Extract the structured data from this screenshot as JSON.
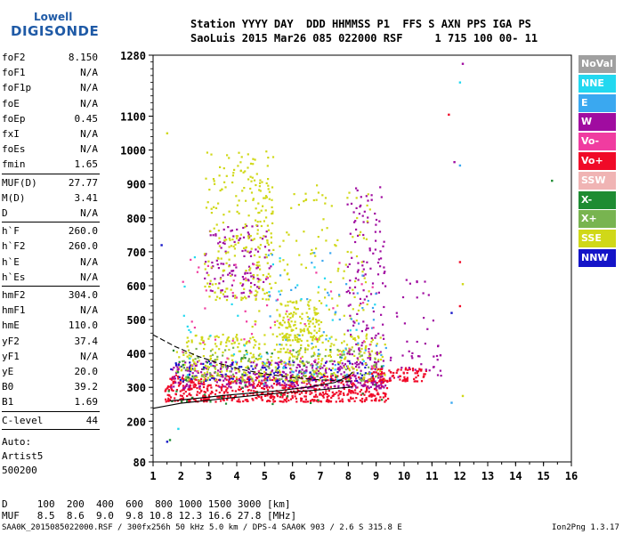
{
  "logo": {
    "line1": "Lowell",
    "line2": "DIGISONDE"
  },
  "header": {
    "line1": "Station YYYY DAY  DDD HHMMSS P1  FFS S AXN PPS IGA PS",
    "line2": "SaoLuis 2015 Mar26 085 022000 RSF     1 715 100 00- 11"
  },
  "params": {
    "group1": [
      {
        "label": "foF2",
        "value": "8.150"
      },
      {
        "label": "foF1",
        "value": "N/A"
      },
      {
        "label": "foF1p",
        "value": "N/A"
      },
      {
        "label": "foE",
        "value": "N/A"
      },
      {
        "label": "foEp",
        "value": "0.45"
      },
      {
        "label": "fxI",
        "value": "N/A"
      },
      {
        "label": "foEs",
        "value": "N/A"
      },
      {
        "label": "fmin",
        "value": "1.65"
      }
    ],
    "group2": [
      {
        "label": "MUF(D)",
        "value": "27.77"
      },
      {
        "label": "M(D)",
        "value": "3.41"
      },
      {
        "label": "D",
        "value": "N/A"
      }
    ],
    "group3": [
      {
        "label": "h`F",
        "value": "260.0"
      },
      {
        "label": "h`F2",
        "value": "260.0"
      },
      {
        "label": "h`E",
        "value": "N/A"
      },
      {
        "label": "h`Es",
        "value": "N/A"
      }
    ],
    "group4": [
      {
        "label": "hmF2",
        "value": "304.0"
      },
      {
        "label": "hmF1",
        "value": "N/A"
      },
      {
        "label": "hmE",
        "value": "110.0"
      },
      {
        "label": "yF2",
        "value": "37.4"
      },
      {
        "label": "yF1",
        "value": "N/A"
      },
      {
        "label": "yE",
        "value": "20.0"
      },
      {
        "label": "B0",
        "value": "39.2"
      },
      {
        "label": "B1",
        "value": "1.69"
      }
    ],
    "group5": [
      {
        "label": "C-level",
        "value": "44"
      }
    ]
  },
  "auto": [
    "Auto:",
    "Artist5",
    "500200"
  ],
  "legend": [
    {
      "label": "NoVal",
      "color": "#a0a0a0"
    },
    {
      "label": "NNE",
      "color": "#22d8f0"
    },
    {
      "label": "E",
      "color": "#3aa8f0"
    },
    {
      "label": "W",
      "color": "#a00ca0"
    },
    {
      "label": "Vo-",
      "color": "#f03ca0"
    },
    {
      "label": "Vo+",
      "color": "#f00a28"
    },
    {
      "label": "SSW",
      "color": "#f0b4b4"
    },
    {
      "label": "X-",
      "color": "#1e8c32"
    },
    {
      "label": "X+",
      "color": "#78b450"
    },
    {
      "label": "SSE",
      "color": "#d0d818"
    },
    {
      "label": "NNW",
      "color": "#1414c8"
    }
  ],
  "footer": {
    "dline": "D     100  200  400  600  800 1000 1500 3000 [km]",
    "mufline": "MUF   8.5  8.6  9.0  9.8 10.8 12.3 16.6 27.8 [MHz]",
    "fileline": "SAA0K_2015085022000.RSF / 300fx256h 50 kHz 5.0 km / DPS-4 SAA0K 903 / 2.6 S 315.8 E",
    "version": "Ion2Png 1.3.17"
  },
  "chart_data": {
    "type": "scatter",
    "title": "",
    "xlabel": "",
    "ylabel": "",
    "xlim": [
      1,
      16
    ],
    "ylim": [
      80,
      1280
    ],
    "x_ticks": [
      1,
      2,
      3,
      4,
      5,
      6,
      7,
      8,
      9,
      10,
      11,
      12,
      13,
      14,
      15,
      16
    ],
    "y_ticks": [
      80,
      200,
      300,
      400,
      500,
      600,
      700,
      800,
      900,
      1000,
      1100,
      1280
    ],
    "curves": [
      {
        "name": "",
        "color": "#000000",
        "points": [
          [
            1.0,
            238
          ],
          [
            2.0,
            253
          ],
          [
            3.0,
            262
          ],
          [
            4.0,
            271
          ],
          [
            5.0,
            279
          ],
          [
            6.0,
            286
          ],
          [
            7.0,
            293
          ],
          [
            8.0,
            300
          ],
          [
            8.15,
            302
          ]
        ]
      },
      {
        "name": "",
        "color": "#000000",
        "points": [
          [
            1.6,
            260
          ],
          [
            2.5,
            267
          ],
          [
            3.5,
            276
          ],
          [
            4.5,
            283
          ],
          [
            5.5,
            290
          ],
          [
            6.5,
            300
          ],
          [
            7.5,
            314
          ],
          [
            8.0,
            332
          ],
          [
            8.15,
            345
          ]
        ]
      },
      {
        "name": "",
        "color": "#000000",
        "dashed": true,
        "points": [
          [
            1.0,
            455
          ],
          [
            1.8,
            420
          ],
          [
            2.6,
            392
          ],
          [
            3.4,
            370
          ],
          [
            4.2,
            352
          ],
          [
            5.0,
            340
          ],
          [
            6.0,
            329
          ],
          [
            7.0,
            322
          ],
          [
            8.15,
            318
          ]
        ]
      }
    ],
    "clusters": [
      {
        "color": "#a00ca0",
        "x": [
          2.8,
          5.2
        ],
        "y": [
          570,
          780
        ],
        "n": 120
      },
      {
        "color": "#d0d818",
        "x": [
          2.8,
          5.3
        ],
        "y": [
          560,
          1000
        ],
        "n": 230
      },
      {
        "color": "#f00a28",
        "x": [
          1.4,
          9.4
        ],
        "y": [
          260,
          340
        ],
        "n": 700
      },
      {
        "color": "#a00ca0",
        "x": [
          1.6,
          9.3
        ],
        "y": [
          300,
          380
        ],
        "n": 380
      },
      {
        "color": "#1414c8",
        "x": [
          1.6,
          9.0
        ],
        "y": [
          320,
          380
        ],
        "n": 110
      },
      {
        "color": "#d0d818",
        "x": [
          1.8,
          9.3
        ],
        "y": [
          320,
          460
        ],
        "n": 380
      },
      {
        "color": "#78b450",
        "x": [
          2.0,
          9.0
        ],
        "y": [
          320,
          420
        ],
        "n": 120
      },
      {
        "color": "#d0d818",
        "x": [
          5.5,
          7.0
        ],
        "y": [
          440,
          560
        ],
        "n": 130
      },
      {
        "color": "#a00ca0",
        "x": [
          7.9,
          9.3
        ],
        "y": [
          380,
          900
        ],
        "n": 130
      },
      {
        "color": "#d0d818",
        "x": [
          4.5,
          8.8
        ],
        "y": [
          380,
          900
        ],
        "n": 170
      },
      {
        "color": "#3aa8f0",
        "x": [
          5.0,
          9.4
        ],
        "y": [
          340,
          700
        ],
        "n": 60
      },
      {
        "color": "#22d8f0",
        "x": [
          2.0,
          9.0
        ],
        "y": [
          300,
          700
        ],
        "n": 40
      },
      {
        "color": "#f00a28",
        "x": [
          8.8,
          10.8
        ],
        "y": [
          320,
          360
        ],
        "n": 80
      },
      {
        "color": "#a00ca0",
        "x": [
          9.4,
          11.3
        ],
        "y": [
          330,
          620
        ],
        "n": 45
      },
      {
        "color": "#f03ca0",
        "x": [
          2.0,
          9.0
        ],
        "y": [
          350,
          680
        ],
        "n": 60
      },
      {
        "color": "#1e8c32",
        "x": [
          1.5,
          9.3
        ],
        "y": [
          250,
          420
        ],
        "n": 45
      }
    ],
    "outliers": [
      {
        "x": 12.1,
        "y": 1255,
        "color": "#a00ca0"
      },
      {
        "x": 12.0,
        "y": 1200,
        "color": "#22d8f0"
      },
      {
        "x": 11.6,
        "y": 1105,
        "color": "#f00a28"
      },
      {
        "x": 11.8,
        "y": 965,
        "color": "#a00ca0"
      },
      {
        "x": 12.0,
        "y": 955,
        "color": "#3aa8f0"
      },
      {
        "x": 15.3,
        "y": 910,
        "color": "#1e8c32"
      },
      {
        "x": 12.0,
        "y": 670,
        "color": "#f00a28"
      },
      {
        "x": 12.1,
        "y": 605,
        "color": "#d0d818"
      },
      {
        "x": 11.7,
        "y": 255,
        "color": "#3aa8f0"
      },
      {
        "x": 12.1,
        "y": 275,
        "color": "#d0d818"
      },
      {
        "x": 11.3,
        "y": 395,
        "color": "#a00ca0"
      },
      {
        "x": 11.7,
        "y": 520,
        "color": "#1414c8"
      },
      {
        "x": 12.0,
        "y": 540,
        "color": "#f00a28"
      },
      {
        "x": 1.5,
        "y": 1050,
        "color": "#d0d818"
      },
      {
        "x": 1.5,
        "y": 140,
        "color": "#1414c8"
      },
      {
        "x": 1.6,
        "y": 145,
        "color": "#1e8c32"
      },
      {
        "x": 1.9,
        "y": 178,
        "color": "#22d8f0"
      },
      {
        "x": 1.3,
        "y": 720,
        "color": "#1414c8"
      }
    ]
  }
}
